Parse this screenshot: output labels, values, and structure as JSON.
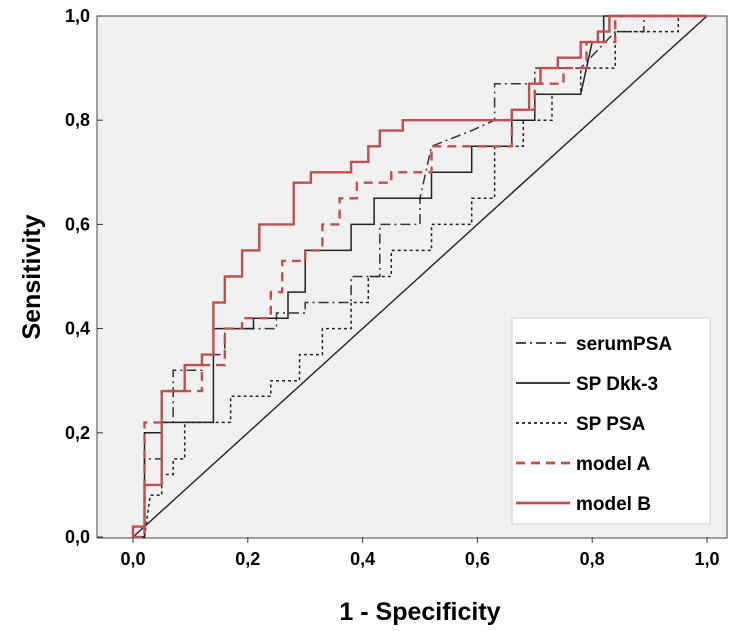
{
  "chart_data": {
    "type": "line",
    "xlabel": "1 - Specificity",
    "ylabel": "Sensitivity",
    "xlim": [
      0,
      1
    ],
    "ylim": [
      0,
      1
    ],
    "x_ticks": [
      "0,0",
      "0,2",
      "0,4",
      "0,6",
      "0,8",
      "1,0"
    ],
    "y_ticks": [
      "0,0",
      "0,2",
      "0,4",
      "0,6",
      "0,8",
      "1,0"
    ],
    "grid": false,
    "legend_position": "bottom-right",
    "plot_background": "#f0f0f0",
    "reference_line": [
      [
        0,
        0
      ],
      [
        1,
        1
      ]
    ],
    "series": [
      {
        "name": "serumPSA",
        "color": "#333333",
        "style": "dash-dot",
        "points": [
          [
            0.0,
            0.0
          ],
          [
            0.02,
            0.0
          ],
          [
            0.02,
            0.15
          ],
          [
            0.05,
            0.15
          ],
          [
            0.05,
            0.22
          ],
          [
            0.07,
            0.22
          ],
          [
            0.07,
            0.32
          ],
          [
            0.12,
            0.32
          ],
          [
            0.12,
            0.35
          ],
          [
            0.16,
            0.35
          ],
          [
            0.16,
            0.4
          ],
          [
            0.25,
            0.4
          ],
          [
            0.25,
            0.43
          ],
          [
            0.3,
            0.43
          ],
          [
            0.3,
            0.45
          ],
          [
            0.38,
            0.45
          ],
          [
            0.38,
            0.5
          ],
          [
            0.43,
            0.5
          ],
          [
            0.43,
            0.6
          ],
          [
            0.5,
            0.6
          ],
          [
            0.5,
            0.65
          ],
          [
            0.52,
            0.75
          ],
          [
            0.59,
            0.78
          ],
          [
            0.63,
            0.8
          ],
          [
            0.63,
            0.87
          ],
          [
            0.7,
            0.87
          ],
          [
            0.7,
            0.9
          ],
          [
            0.78,
            0.9
          ],
          [
            0.84,
            0.97
          ],
          [
            0.89,
            0.97
          ],
          [
            0.89,
            1.0
          ],
          [
            1.0,
            1.0
          ]
        ]
      },
      {
        "name": "SP Dkk-3",
        "color": "#222222",
        "style": "solid",
        "points": [
          [
            0.0,
            0.0
          ],
          [
            0.02,
            0.0
          ],
          [
            0.02,
            0.2
          ],
          [
            0.05,
            0.2
          ],
          [
            0.05,
            0.22
          ],
          [
            0.14,
            0.22
          ],
          [
            0.14,
            0.4
          ],
          [
            0.21,
            0.4
          ],
          [
            0.21,
            0.42
          ],
          [
            0.27,
            0.42
          ],
          [
            0.27,
            0.47
          ],
          [
            0.3,
            0.47
          ],
          [
            0.3,
            0.55
          ],
          [
            0.38,
            0.55
          ],
          [
            0.38,
            0.6
          ],
          [
            0.42,
            0.6
          ],
          [
            0.42,
            0.65
          ],
          [
            0.52,
            0.65
          ],
          [
            0.52,
            0.7
          ],
          [
            0.59,
            0.7
          ],
          [
            0.59,
            0.75
          ],
          [
            0.66,
            0.75
          ],
          [
            0.66,
            0.8
          ],
          [
            0.7,
            0.8
          ],
          [
            0.7,
            0.85
          ],
          [
            0.78,
            0.85
          ],
          [
            0.8,
            0.95
          ],
          [
            0.82,
            0.95
          ],
          [
            0.82,
            1.0
          ],
          [
            1.0,
            1.0
          ]
        ]
      },
      {
        "name": "SP PSA",
        "color": "#222222",
        "style": "dotted",
        "points": [
          [
            0.0,
            0.0
          ],
          [
            0.02,
            0.0
          ],
          [
            0.03,
            0.08
          ],
          [
            0.05,
            0.08
          ],
          [
            0.05,
            0.12
          ],
          [
            0.07,
            0.12
          ],
          [
            0.07,
            0.15
          ],
          [
            0.09,
            0.15
          ],
          [
            0.09,
            0.22
          ],
          [
            0.17,
            0.22
          ],
          [
            0.17,
            0.27
          ],
          [
            0.24,
            0.27
          ],
          [
            0.24,
            0.3
          ],
          [
            0.29,
            0.3
          ],
          [
            0.29,
            0.35
          ],
          [
            0.33,
            0.35
          ],
          [
            0.33,
            0.4
          ],
          [
            0.38,
            0.4
          ],
          [
            0.38,
            0.45
          ],
          [
            0.41,
            0.45
          ],
          [
            0.41,
            0.5
          ],
          [
            0.45,
            0.5
          ],
          [
            0.45,
            0.55
          ],
          [
            0.52,
            0.55
          ],
          [
            0.52,
            0.6
          ],
          [
            0.59,
            0.6
          ],
          [
            0.59,
            0.65
          ],
          [
            0.63,
            0.65
          ],
          [
            0.63,
            0.75
          ],
          [
            0.68,
            0.75
          ],
          [
            0.68,
            0.8
          ],
          [
            0.73,
            0.8
          ],
          [
            0.73,
            0.85
          ],
          [
            0.78,
            0.85
          ],
          [
            0.78,
            0.9
          ],
          [
            0.84,
            0.9
          ],
          [
            0.84,
            0.97
          ],
          [
            0.95,
            0.97
          ],
          [
            0.95,
            1.0
          ],
          [
            1.0,
            1.0
          ]
        ]
      },
      {
        "name": "model A",
        "color": "#c0504d",
        "style": "dashed",
        "points": [
          [
            0.0,
            0.0
          ],
          [
            0.02,
            0.0
          ],
          [
            0.02,
            0.22
          ],
          [
            0.05,
            0.22
          ],
          [
            0.05,
            0.28
          ],
          [
            0.12,
            0.28
          ],
          [
            0.12,
            0.33
          ],
          [
            0.16,
            0.33
          ],
          [
            0.16,
            0.4
          ],
          [
            0.19,
            0.4
          ],
          [
            0.19,
            0.42
          ],
          [
            0.24,
            0.42
          ],
          [
            0.24,
            0.47
          ],
          [
            0.26,
            0.47
          ],
          [
            0.26,
            0.53
          ],
          [
            0.3,
            0.53
          ],
          [
            0.3,
            0.55
          ],
          [
            0.33,
            0.55
          ],
          [
            0.33,
            0.6
          ],
          [
            0.36,
            0.6
          ],
          [
            0.36,
            0.65
          ],
          [
            0.39,
            0.65
          ],
          [
            0.39,
            0.68
          ],
          [
            0.45,
            0.68
          ],
          [
            0.45,
            0.7
          ],
          [
            0.52,
            0.7
          ],
          [
            0.52,
            0.75
          ],
          [
            0.59,
            0.75
          ],
          [
            0.59,
            0.75
          ],
          [
            0.66,
            0.75
          ],
          [
            0.66,
            0.82
          ],
          [
            0.7,
            0.82
          ],
          [
            0.7,
            0.87
          ],
          [
            0.75,
            0.87
          ],
          [
            0.75,
            0.9
          ],
          [
            0.79,
            0.9
          ],
          [
            0.79,
            0.95
          ],
          [
            0.84,
            0.95
          ],
          [
            0.84,
            1.0
          ],
          [
            1.0,
            1.0
          ]
        ]
      },
      {
        "name": "model B",
        "color": "#c0504d",
        "style": "solid",
        "points": [
          [
            0.0,
            0.0
          ],
          [
            0.0,
            0.02
          ],
          [
            0.02,
            0.02
          ],
          [
            0.02,
            0.1
          ],
          [
            0.05,
            0.1
          ],
          [
            0.05,
            0.28
          ],
          [
            0.09,
            0.28
          ],
          [
            0.09,
            0.33
          ],
          [
            0.12,
            0.33
          ],
          [
            0.12,
            0.35
          ],
          [
            0.14,
            0.35
          ],
          [
            0.14,
            0.45
          ],
          [
            0.16,
            0.45
          ],
          [
            0.16,
            0.5
          ],
          [
            0.19,
            0.5
          ],
          [
            0.19,
            0.55
          ],
          [
            0.22,
            0.55
          ],
          [
            0.22,
            0.6
          ],
          [
            0.28,
            0.6
          ],
          [
            0.28,
            0.68
          ],
          [
            0.31,
            0.68
          ],
          [
            0.31,
            0.7
          ],
          [
            0.38,
            0.7
          ],
          [
            0.38,
            0.72
          ],
          [
            0.41,
            0.72
          ],
          [
            0.41,
            0.75
          ],
          [
            0.43,
            0.75
          ],
          [
            0.43,
            0.78
          ],
          [
            0.47,
            0.78
          ],
          [
            0.47,
            0.8
          ],
          [
            0.66,
            0.8
          ],
          [
            0.66,
            0.82
          ],
          [
            0.69,
            0.82
          ],
          [
            0.69,
            0.87
          ],
          [
            0.71,
            0.87
          ],
          [
            0.71,
            0.9
          ],
          [
            0.74,
            0.9
          ],
          [
            0.74,
            0.92
          ],
          [
            0.78,
            0.92
          ],
          [
            0.78,
            0.95
          ],
          [
            0.81,
            0.95
          ],
          [
            0.81,
            0.97
          ],
          [
            0.83,
            0.97
          ],
          [
            0.83,
            1.0
          ],
          [
            1.0,
            1.0
          ]
        ]
      }
    ]
  }
}
